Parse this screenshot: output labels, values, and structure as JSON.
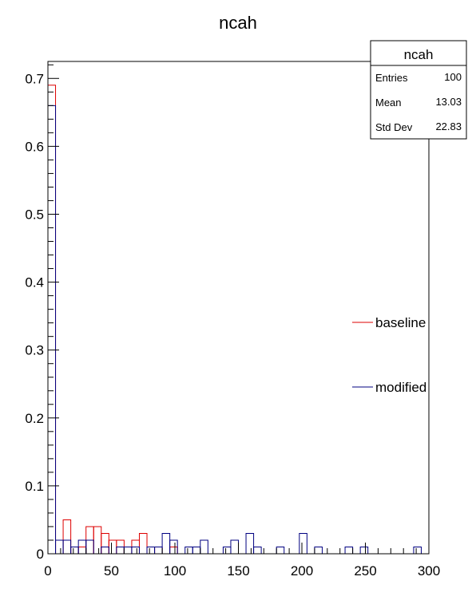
{
  "chart_data": {
    "type": "histogram",
    "title": "ncah",
    "xlabel": "",
    "ylabel": "",
    "xlim": [
      0,
      300
    ],
    "ylim": [
      0,
      0.725
    ],
    "bin_width": 6,
    "x_ticks": [
      0,
      50,
      100,
      150,
      200,
      250,
      300
    ],
    "y_ticks": [
      0,
      0.1,
      0.2,
      0.3,
      0.4,
      0.5,
      0.6,
      0.7
    ],
    "grid": false,
    "legend_position": "right",
    "series": [
      {
        "name": "baseline",
        "color": "#dd0000",
        "bins": [
          {
            "x0": 0,
            "x1": 6,
            "y": 0.69
          },
          {
            "x0": 6,
            "x1": 12,
            "y": 0.02
          },
          {
            "x0": 12,
            "x1": 18,
            "y": 0.05
          },
          {
            "x0": 18,
            "x1": 24,
            "y": 0.01
          },
          {
            "x0": 24,
            "x1": 30,
            "y": 0.01
          },
          {
            "x0": 30,
            "x1": 36,
            "y": 0.04
          },
          {
            "x0": 36,
            "x1": 42,
            "y": 0.04
          },
          {
            "x0": 42,
            "x1": 48,
            "y": 0.03
          },
          {
            "x0": 48,
            "x1": 54,
            "y": 0.02
          },
          {
            "x0": 54,
            "x1": 60,
            "y": 0.02
          },
          {
            "x0": 60,
            "x1": 66,
            "y": 0.01
          },
          {
            "x0": 66,
            "x1": 72,
            "y": 0.02
          },
          {
            "x0": 72,
            "x1": 78,
            "y": 0.03
          },
          {
            "x0": 78,
            "x1": 84,
            "y": 0.01
          },
          {
            "x0": 84,
            "x1": 90,
            "y": 0.01
          },
          {
            "x0": 96,
            "x1": 102,
            "y": 0.01
          }
        ]
      },
      {
        "name": "modified",
        "color": "#000080",
        "bins": [
          {
            "x0": 0,
            "x1": 6,
            "y": 0.66
          },
          {
            "x0": 6,
            "x1": 12,
            "y": 0.02
          },
          {
            "x0": 12,
            "x1": 18,
            "y": 0.02
          },
          {
            "x0": 18,
            "x1": 24,
            "y": 0.01
          },
          {
            "x0": 24,
            "x1": 30,
            "y": 0.02
          },
          {
            "x0": 30,
            "x1": 36,
            "y": 0.02
          },
          {
            "x0": 42,
            "x1": 48,
            "y": 0.01
          },
          {
            "x0": 54,
            "x1": 60,
            "y": 0.01
          },
          {
            "x0": 60,
            "x1": 66,
            "y": 0.01
          },
          {
            "x0": 66,
            "x1": 72,
            "y": 0.01
          },
          {
            "x0": 78,
            "x1": 84,
            "y": 0.01
          },
          {
            "x0": 84,
            "x1": 90,
            "y": 0.01
          },
          {
            "x0": 90,
            "x1": 96,
            "y": 0.03
          },
          {
            "x0": 96,
            "x1": 102,
            "y": 0.02
          },
          {
            "x0": 108,
            "x1": 114,
            "y": 0.01
          },
          {
            "x0": 114,
            "x1": 120,
            "y": 0.01
          },
          {
            "x0": 120,
            "x1": 126,
            "y": 0.02
          },
          {
            "x0": 138,
            "x1": 144,
            "y": 0.01
          },
          {
            "x0": 144,
            "x1": 150,
            "y": 0.02
          },
          {
            "x0": 156,
            "x1": 162,
            "y": 0.03
          },
          {
            "x0": 162,
            "x1": 168,
            "y": 0.01
          },
          {
            "x0": 180,
            "x1": 186,
            "y": 0.01
          },
          {
            "x0": 198,
            "x1": 204,
            "y": 0.03
          },
          {
            "x0": 210,
            "x1": 216,
            "y": 0.01
          },
          {
            "x0": 234,
            "x1": 240,
            "y": 0.01
          },
          {
            "x0": 246,
            "x1": 252,
            "y": 0.01
          },
          {
            "x0": 288,
            "x1": 294,
            "y": 0.01
          }
        ]
      }
    ],
    "stats_box": {
      "title": "ncah",
      "rows": [
        {
          "label": "Entries",
          "value": "100"
        },
        {
          "label": "Mean",
          "value": "13.03"
        },
        {
          "label": "Std Dev",
          "value": "22.83"
        }
      ]
    }
  }
}
